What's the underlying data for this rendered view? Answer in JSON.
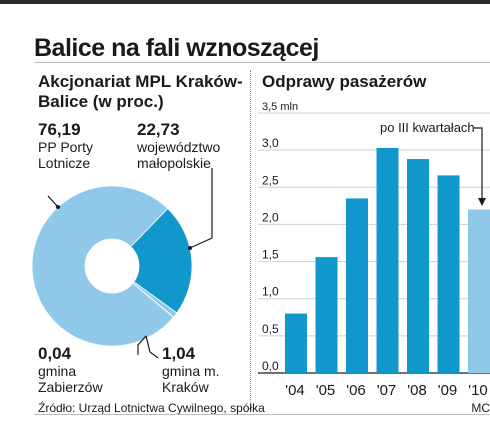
{
  "title": "Balice na fali wznoszącej",
  "source": "Źródło: Urząd Lotnictwa Cywilnego, spółka",
  "credit": "MC",
  "colors": {
    "light": "#8fc8e8",
    "dark": "#1097cc",
    "text": "#1a1a1a"
  },
  "chart_data": [
    {
      "type": "pie",
      "title": "Akcjonariat MPL Kraków-Balice (w proc.)",
      "donut": true,
      "slices": [
        {
          "value": 76.19,
          "value_label": "76,19",
          "label": "PP Porty Lotnicze",
          "color": "#8fc8e8"
        },
        {
          "value": 22.73,
          "value_label": "22,73",
          "label": "województwo małopolskie",
          "color": "#1097cc"
        },
        {
          "value": 1.04,
          "value_label": "1,04",
          "label": "gmina m. Kraków",
          "color": "#8fc8e8"
        },
        {
          "value": 0.04,
          "value_label": "0,04",
          "label": "gmina Zabierzów",
          "color": "#1097cc"
        }
      ]
    },
    {
      "type": "bar",
      "title": "Odprawy pasażerów",
      "unit_label": "3,5 mln",
      "categories": [
        "'04",
        "'05",
        "'06",
        "'07",
        "'08",
        "'09",
        "'10"
      ],
      "values": [
        0.8,
        1.56,
        2.35,
        3.03,
        2.88,
        2.66,
        2.2
      ],
      "ylim": [
        0,
        3.5
      ],
      "yticks": [
        0.0,
        0.5,
        1.0,
        1.5,
        2.0,
        2.5,
        3.0,
        3.5
      ],
      "ytick_labels": [
        "0,0",
        "0,5",
        "1,0",
        "1,5",
        "2,0",
        "2,5",
        "3,0",
        "3,5 mln"
      ],
      "grid": true,
      "annotation": "po III kwartałach",
      "highlight_index": 6
    }
  ]
}
